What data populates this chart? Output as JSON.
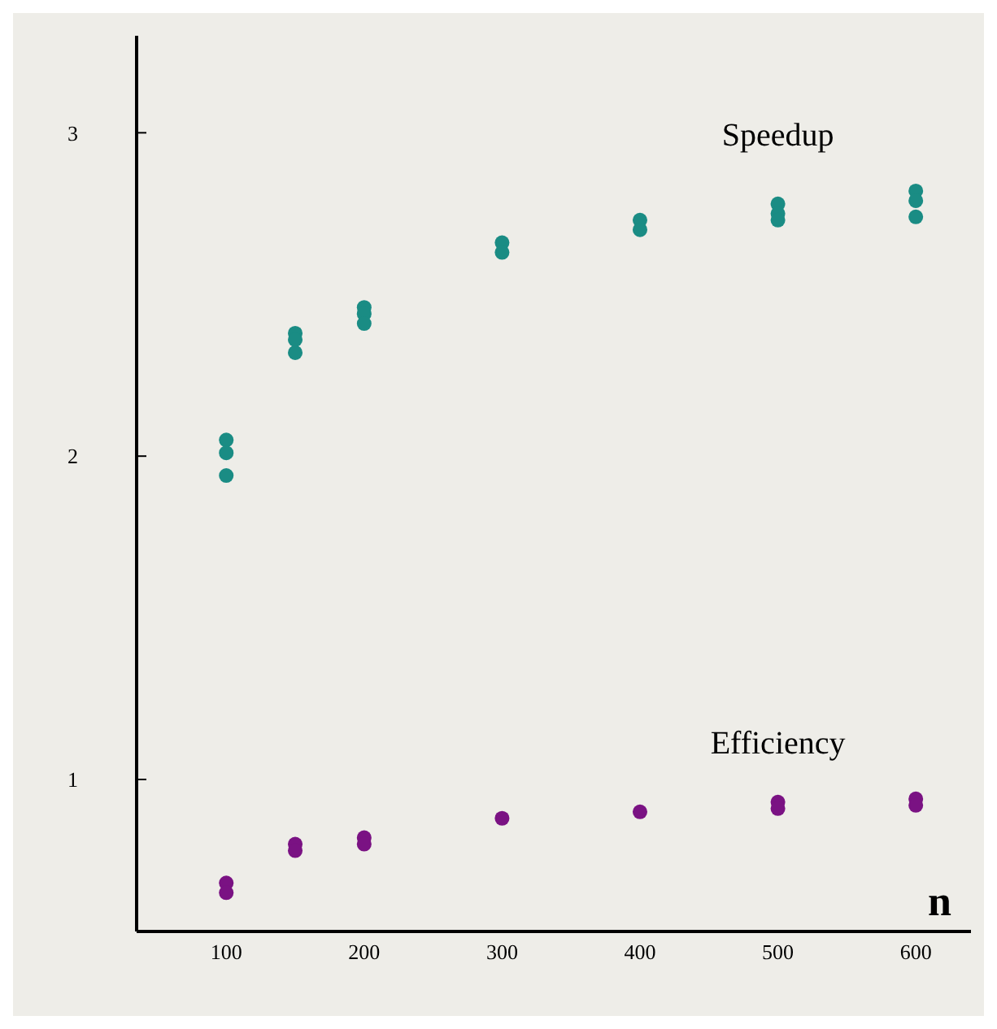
{
  "chart_data": {
    "type": "scatter",
    "xlabel": "n",
    "marker": "circle",
    "legend": false,
    "grid": false,
    "xlim": [
      35,
      640
    ],
    "ylim": [
      0.53,
      3.3
    ],
    "xticks": [
      100,
      200,
      300,
      400,
      500,
      600
    ],
    "yticks": [
      1,
      2,
      3
    ],
    "series": [
      {
        "name": "Speedup",
        "color": "#1a8c84",
        "x": [
          100,
          100,
          100,
          150,
          150,
          150,
          200,
          200,
          200,
          300,
          300,
          400,
          400,
          500,
          500,
          500,
          600,
          600,
          600
        ],
        "values": [
          2.05,
          2.01,
          1.94,
          2.38,
          2.36,
          2.32,
          2.46,
          2.44,
          2.41,
          2.66,
          2.63,
          2.73,
          2.7,
          2.78,
          2.75,
          2.73,
          2.82,
          2.79,
          2.74
        ]
      },
      {
        "name": "Efficiency",
        "color": "#7a1283",
        "x": [
          100,
          100,
          150,
          150,
          200,
          200,
          300,
          400,
          500,
          500,
          600,
          600
        ],
        "values": [
          0.68,
          0.65,
          0.8,
          0.78,
          0.82,
          0.8,
          0.88,
          0.9,
          0.93,
          0.91,
          0.94,
          0.92
        ]
      }
    ]
  }
}
